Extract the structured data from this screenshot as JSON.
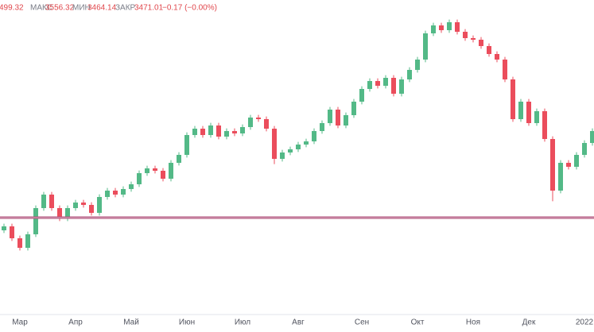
{
  "chart_data": {
    "type": "candlestick",
    "header": {
      "open": "499.32",
      "high_label": "МАКС",
      "high": "3556.32",
      "low_label": "МИН",
      "low": "3464.14",
      "close_label": "ЗАКР",
      "close": "3471.01",
      "change": "−0.17 (−0.00%)"
    },
    "categories": [
      null,
      null,
      "Мар",
      null,
      null,
      null,
      null,
      null,
      null,
      "Апр",
      null,
      null,
      null,
      null,
      null,
      null,
      "Май",
      null,
      null,
      null,
      null,
      null,
      null,
      "Июн",
      null,
      null,
      null,
      null,
      null,
      null,
      "Июл",
      null,
      null,
      null,
      null,
      null,
      null,
      "Авг",
      null,
      null,
      null,
      null,
      null,
      null,
      null,
      "Сен",
      null,
      null,
      null,
      null,
      null,
      null,
      "Окт",
      null,
      null,
      null,
      null,
      null,
      null,
      "Ноя",
      null,
      null,
      null,
      null,
      null,
      null,
      "Дек",
      null,
      null,
      null,
      null,
      null,
      null,
      "2022",
      null
    ],
    "open": [
      3530,
      3545,
      3500,
      3464,
      3515,
      3614,
      3665,
      3614,
      3575,
      3614,
      3635,
      3626,
      3596,
      3656,
      3680,
      3665,
      3686,
      3704,
      3746,
      3764,
      3755,
      3725,
      3785,
      3815,
      3890,
      3914,
      3890,
      3926,
      3884,
      3905,
      3896,
      3920,
      3956,
      3950,
      3914,
      3800,
      3824,
      3836,
      3854,
      3866,
      3905,
      3935,
      3986,
      3926,
      3965,
      4016,
      4064,
      4094,
      4076,
      4106,
      4046,
      4100,
      4136,
      4175,
      4274,
      4304,
      4286,
      4316,
      4280,
      4256,
      4250,
      4226,
      4196,
      4175,
      4100,
      3950,
      4016,
      3935,
      3980,
      3875,
      3680,
      3785,
      3770,
      3815,
      3860
    ],
    "high": [
      3555,
      3555,
      3510,
      3525,
      3624,
      3675,
      3675,
      3624,
      3624,
      3645,
      3645,
      3636,
      3666,
      3690,
      3690,
      3696,
      3714,
      3756,
      3774,
      3774,
      3765,
      3795,
      3825,
      3900,
      3924,
      3924,
      3936,
      3936,
      3915,
      3915,
      3930,
      3966,
      3966,
      3960,
      3924,
      3834,
      3846,
      3864,
      3876,
      3915,
      3945,
      3996,
      3996,
      3975,
      4026,
      4074,
      4104,
      4104,
      4116,
      4116,
      4110,
      4146,
      4185,
      4284,
      4314,
      4314,
      4326,
      4326,
      4290,
      4266,
      4260,
      4236,
      4206,
      4185,
      4110,
      4026,
      4026,
      3990,
      3990,
      3885,
      3795,
      3795,
      3825,
      3870,
      3915
    ],
    "low": [
      3520,
      3490,
      3454,
      3454,
      3505,
      3604,
      3604,
      3565,
      3565,
      3604,
      3616,
      3586,
      3586,
      3646,
      3655,
      3655,
      3676,
      3694,
      3736,
      3745,
      3715,
      3715,
      3775,
      3805,
      3880,
      3880,
      3880,
      3874,
      3874,
      3886,
      3886,
      3910,
      3940,
      3904,
      3780,
      3790,
      3814,
      3826,
      3844,
      3856,
      3895,
      3925,
      3916,
      3916,
      3955,
      4006,
      4054,
      4066,
      4066,
      4036,
      4036,
      4090,
      4126,
      4165,
      4264,
      4276,
      4276,
      4270,
      4246,
      4240,
      4216,
      4186,
      4165,
      4090,
      3940,
      3940,
      3925,
      3925,
      3865,
      3640,
      3670,
      3760,
      3760,
      3805,
      3850
    ],
    "close": [
      3545,
      3500,
      3464,
      3515,
      3614,
      3665,
      3614,
      3575,
      3614,
      3635,
      3626,
      3596,
      3656,
      3680,
      3665,
      3686,
      3704,
      3746,
      3764,
      3755,
      3725,
      3785,
      3815,
      3890,
      3914,
      3890,
      3926,
      3884,
      3905,
      3896,
      3920,
      3956,
      3950,
      3914,
      3800,
      3824,
      3836,
      3854,
      3866,
      3905,
      3935,
      3986,
      3926,
      3965,
      4016,
      4064,
      4094,
      4076,
      4106,
      4046,
      4100,
      4136,
      4175,
      4274,
      4304,
      4286,
      4316,
      4280,
      4256,
      4250,
      4226,
      4196,
      4175,
      4100,
      3950,
      4016,
      3935,
      3980,
      3875,
      3680,
      3785,
      3770,
      3815,
      3860,
      3905
    ],
    "ylim": [
      3200,
      4400
    ],
    "up_color": "#53b987",
    "down_color": "#eb4d5c",
    "hline": {
      "value": 3578,
      "color": "#b0507a"
    }
  }
}
